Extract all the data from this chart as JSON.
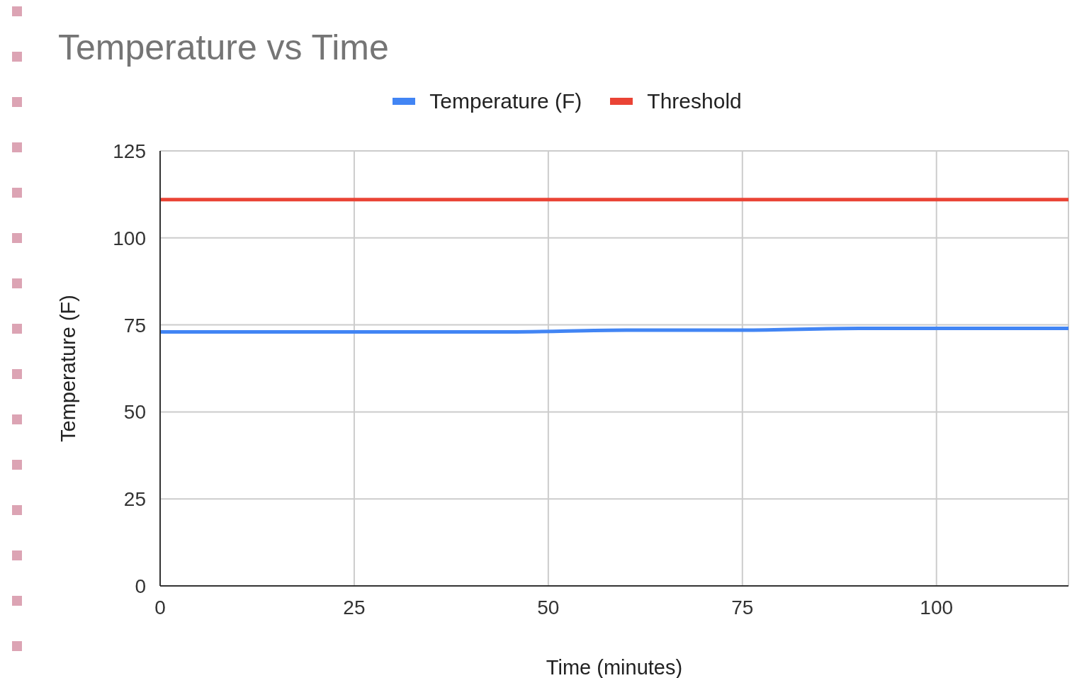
{
  "chart_data": {
    "type": "line",
    "title": "Temperature vs Time",
    "xlabel": "Time (minutes)",
    "ylabel": "Temperature (F)",
    "xlim": [
      0,
      117
    ],
    "xticks": [
      0,
      25,
      50,
      75,
      100
    ],
    "ylim": [
      0,
      125
    ],
    "yticks": [
      0,
      25,
      50,
      75,
      100,
      125
    ],
    "grid": true,
    "legend": "top",
    "marker": "none",
    "series": [
      {
        "name": "Temperature (F)",
        "color": "#4285f4",
        "x": [
          0,
          45,
          60,
          75,
          90,
          117
        ],
        "values": [
          73,
          73,
          73.5,
          73.5,
          74,
          74
        ]
      },
      {
        "name": "Threshold",
        "color": "#ea4335",
        "x": [
          0,
          117
        ],
        "values": [
          111,
          111
        ]
      }
    ]
  }
}
